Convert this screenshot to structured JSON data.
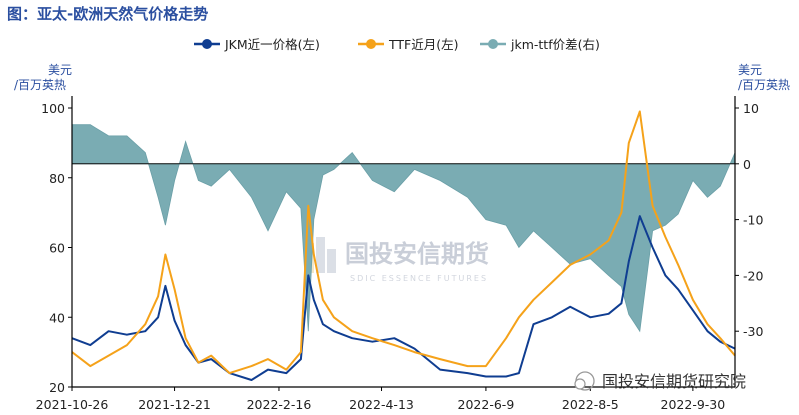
{
  "title": "图：亚太-欧洲天然气价格走势",
  "watermark": {
    "cn": "国投安信期货",
    "en": "SDIC ESSENCE FUTURES"
  },
  "source_badge": "国投安信期货研究院",
  "colors": {
    "jkm": "#0f3d91",
    "ttf": "#f5a21a",
    "spread": "#7aacb3",
    "title": "#2b4fa0"
  },
  "chart_data": {
    "type": "line",
    "title": "图：亚太-欧洲天然气价格走势",
    "x_tick_labels": [
      "2021-10-26",
      "2021-12-21",
      "2022-2-16",
      "2022-4-13",
      "2022-6-9",
      "2022-8-5",
      "2022-9-30"
    ],
    "x_range": [
      "2021-10-26",
      "2022-10-23"
    ],
    "left_axis": {
      "unit": "美元/百万英热",
      "ylim": [
        20,
        100
      ],
      "ticks": [
        20,
        40,
        60,
        80,
        100
      ]
    },
    "right_axis": {
      "unit": "美元/百万英热",
      "ylim": [
        -40,
        10
      ],
      "ticks": [
        -30,
        -20,
        -10,
        0,
        10
      ]
    },
    "legend_position": "top",
    "series": [
      {
        "name": "JKM近一价格(左)",
        "axis": "left",
        "style": "line",
        "x": [
          "2021-10-26",
          "2021-11-05",
          "2021-11-15",
          "2021-11-25",
          "2021-12-05",
          "2021-12-12",
          "2021-12-16",
          "2021-12-21",
          "2021-12-27",
          "2022-01-03",
          "2022-01-10",
          "2022-01-20",
          "2022-02-01",
          "2022-02-10",
          "2022-02-20",
          "2022-02-28",
          "2022-03-04",
          "2022-03-07",
          "2022-03-12",
          "2022-03-18",
          "2022-03-28",
          "2022-04-08",
          "2022-04-20",
          "2022-05-01",
          "2022-05-15",
          "2022-05-30",
          "2022-06-09",
          "2022-06-20",
          "2022-06-27",
          "2022-07-05",
          "2022-07-15",
          "2022-07-25",
          "2022-08-05",
          "2022-08-15",
          "2022-08-22",
          "2022-08-26",
          "2022-09-01",
          "2022-09-08",
          "2022-09-15",
          "2022-09-22",
          "2022-09-30",
          "2022-10-08",
          "2022-10-15",
          "2022-10-23"
        ],
        "y": [
          34,
          32,
          36,
          35,
          36,
          40,
          49,
          39,
          32,
          27,
          28,
          24,
          22,
          25,
          24,
          28,
          52,
          45,
          38,
          36,
          34,
          33,
          34,
          31,
          25,
          24,
          23,
          23,
          24,
          38,
          40,
          43,
          40,
          41,
          44,
          56,
          69,
          60,
          52,
          48,
          42,
          36,
          33,
          31
        ]
      },
      {
        "name": "TTF近月(左)",
        "axis": "left",
        "style": "line",
        "x": [
          "2021-10-26",
          "2021-11-05",
          "2021-11-15",
          "2021-11-25",
          "2021-12-05",
          "2021-12-12",
          "2021-12-16",
          "2021-12-21",
          "2021-12-27",
          "2022-01-03",
          "2022-01-10",
          "2022-01-20",
          "2022-02-01",
          "2022-02-10",
          "2022-02-20",
          "2022-02-28",
          "2022-03-04",
          "2022-03-07",
          "2022-03-12",
          "2022-03-18",
          "2022-03-28",
          "2022-04-08",
          "2022-04-20",
          "2022-05-01",
          "2022-05-15",
          "2022-05-30",
          "2022-06-09",
          "2022-06-20",
          "2022-06-27",
          "2022-07-05",
          "2022-07-15",
          "2022-07-25",
          "2022-08-05",
          "2022-08-15",
          "2022-08-22",
          "2022-08-26",
          "2022-09-01",
          "2022-09-08",
          "2022-09-15",
          "2022-09-22",
          "2022-09-30",
          "2022-10-08",
          "2022-10-15",
          "2022-10-23"
        ],
        "y": [
          30,
          26,
          29,
          32,
          38,
          46,
          58,
          48,
          34,
          27,
          29,
          24,
          26,
          28,
          25,
          30,
          72,
          58,
          45,
          40,
          36,
          34,
          32,
          30,
          28,
          26,
          26,
          34,
          40,
          45,
          50,
          55,
          58,
          62,
          70,
          90,
          99,
          72,
          63,
          55,
          45,
          38,
          34,
          29
        ]
      },
      {
        "name": "jkm-ttf价差(右)",
        "axis": "right",
        "style": "area",
        "x": [
          "2021-10-26",
          "2021-11-05",
          "2021-11-15",
          "2021-11-25",
          "2021-12-05",
          "2021-12-12",
          "2021-12-16",
          "2021-12-21",
          "2021-12-27",
          "2022-01-03",
          "2022-01-10",
          "2022-01-20",
          "2022-02-01",
          "2022-02-10",
          "2022-02-20",
          "2022-02-28",
          "2022-03-04",
          "2022-03-07",
          "2022-03-12",
          "2022-03-18",
          "2022-03-28",
          "2022-04-08",
          "2022-04-20",
          "2022-05-01",
          "2022-05-15",
          "2022-05-30",
          "2022-06-09",
          "2022-06-20",
          "2022-06-27",
          "2022-07-05",
          "2022-07-15",
          "2022-07-25",
          "2022-08-05",
          "2022-08-15",
          "2022-08-22",
          "2022-08-26",
          "2022-09-01",
          "2022-09-08",
          "2022-09-15",
          "2022-09-22",
          "2022-09-30",
          "2022-10-08",
          "2022-10-15",
          "2022-10-23"
        ],
        "y": [
          7,
          7,
          5,
          5,
          2,
          -6,
          -11,
          -3,
          4,
          -3,
          -4,
          -1,
          -6,
          -12,
          -5,
          -8,
          -30,
          -10,
          -2,
          -1,
          2,
          -3,
          -5,
          -1,
          -3,
          -6,
          -10,
          -11,
          -15,
          -12,
          -15,
          -18,
          -17,
          -20,
          -22,
          -27,
          -30,
          -12,
          -11,
          -9,
          -3,
          -6,
          -4,
          2
        ]
      }
    ],
    "grid": false
  }
}
